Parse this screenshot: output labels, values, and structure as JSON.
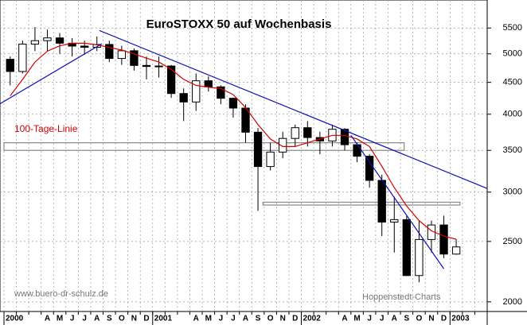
{
  "chart_data": {
    "type": "candlestick",
    "title": "EuroSTOXX 50 auf Wochenbasis",
    "source": "www.buero-dr-schulz.de",
    "credit": "Hoppenstedt-Charts",
    "log_scale": true,
    "grid": true,
    "categories": [
      "2000",
      null,
      null,
      "A",
      "M",
      "J",
      "J",
      "A",
      "S",
      "O",
      "N",
      "D",
      "2001",
      null,
      null,
      "A",
      "M",
      "J",
      "J",
      "A",
      "S",
      "O",
      "N",
      "D",
      "2002",
      null,
      null,
      "A",
      "M",
      "J",
      "J",
      "A",
      "S",
      "O",
      "N",
      "D",
      "2003",
      null,
      null
    ],
    "open": [
      4900,
      4684,
      5183,
      5249,
      5303,
      5200,
      5145,
      5122,
      5176,
      4915,
      5057,
      4790,
      4772,
      4780,
      4318,
      4185,
      4526,
      4426,
      4243,
      4092,
      3743,
      3297,
      3478,
      3658,
      3806,
      3670,
      3624,
      3784,
      3574,
      3425,
      3133,
      2685,
      2710,
      2204,
      2518,
      2657,
      2386,
      null,
      null
    ],
    "high": [
      4950,
      5250,
      5520,
      5470,
      5400,
      5300,
      5250,
      5330,
      5250,
      5150,
      5100,
      4950,
      4950,
      4800,
      4400,
      4650,
      4600,
      4450,
      4250,
      4150,
      3800,
      3600,
      3750,
      3850,
      3900,
      3750,
      3850,
      3800,
      3600,
      3450,
      3200,
      2950,
      2750,
      2700,
      2700,
      2750,
      2520,
      null,
      null
    ],
    "low": [
      4450,
      4650,
      5050,
      5050,
      5000,
      4950,
      4980,
      5050,
      4850,
      4800,
      4700,
      4550,
      4580,
      4250,
      3900,
      4050,
      4350,
      4150,
      3950,
      3600,
      2800,
      3250,
      3400,
      3550,
      3550,
      3450,
      3550,
      3500,
      3350,
      3050,
      2550,
      2400,
      2200,
      2150,
      2400,
      2350,
      2380,
      null,
      null
    ],
    "close": [
      4684,
      5183,
      5249,
      5303,
      5200,
      5145,
      5122,
      5176,
      4915,
      5057,
      4790,
      4772,
      4780,
      4318,
      4185,
      4526,
      4426,
      4243,
      4092,
      3743,
      3297,
      3478,
      3658,
      3806,
      3670,
      3624,
      3784,
      3574,
      3425,
      3133,
      2685,
      2710,
      2204,
      2518,
      2657,
      2386,
      2450,
      null,
      null
    ],
    "series": [
      {
        "name": "100-Tage-Linie",
        "color": "#d40000",
        "values": [
          4280,
          4550,
          4850,
          5050,
          5150,
          5200,
          5200,
          5170,
          5120,
          5070,
          5000,
          4920,
          4850,
          4720,
          4550,
          4450,
          4420,
          4400,
          4300,
          4100,
          3850,
          3650,
          3550,
          3550,
          3600,
          3650,
          3700,
          3700,
          3650,
          3550,
          3300,
          3050,
          2850,
          2700,
          2600,
          2550,
          2520,
          null,
          null
        ]
      }
    ],
    "trendlines": [
      {
        "color": "#1010b0",
        "x": [
          -0.3,
          7.9
        ],
        "y": [
          4160,
          5190
        ]
      },
      {
        "color": "#1010b0",
        "x": [
          7.7,
          39
        ],
        "y": [
          5450,
          3040
        ]
      },
      {
        "color": "#1010b0",
        "x": [
          28,
          35.5
        ],
        "y": [
          3700,
          2260
        ]
      }
    ],
    "zones": [
      {
        "color": "#888888",
        "x": [
          0,
          32.3
        ],
        "y": [
          3500,
          3600
        ]
      },
      {
        "color": "#888888",
        "x": [
          20.9,
          36.8
        ],
        "y": [
          2860,
          2890
        ]
      }
    ],
    "ylim": [
      1930,
      6100
    ],
    "yticks": [
      2000,
      2500,
      3000,
      3500,
      4000,
      4500,
      5000,
      5500
    ]
  }
}
